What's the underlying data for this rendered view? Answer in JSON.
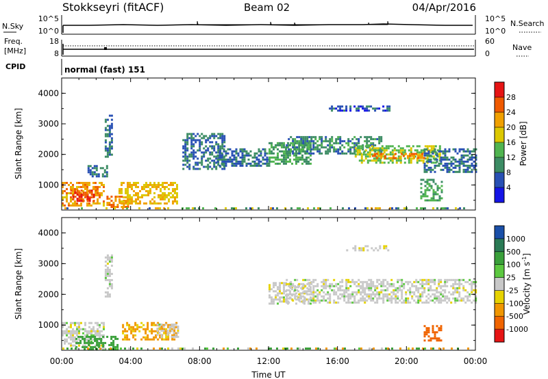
{
  "header": {
    "station": "Stokkseyri (fitACF)",
    "beam": "Beam 02",
    "date": "04/Apr/2016"
  },
  "noise_panel": {
    "left_label": "N.Sky",
    "right_label": "N.Search",
    "top_tick": "10^5",
    "bottom_tick": "10^0"
  },
  "freq_panel": {
    "label_line1": "Freq.",
    "label_line2": "[MHz]",
    "left_ticks": [
      "18",
      "8"
    ],
    "right_ticks": [
      "60",
      "0"
    ],
    "right_label": "Nave"
  },
  "cpid_panel": {
    "label": "CPID",
    "mode": "normal (fast) 151"
  },
  "x_axis": {
    "ticks": [
      "00:00",
      "04:00",
      "08:00",
      "12:00",
      "16:00",
      "20:00",
      "00:00"
    ],
    "label": "Time UT"
  },
  "colors": {
    "power_scale": [
      "#1414e6",
      "#2850b4",
      "#3c8c64",
      "#50b450",
      "#dcc800",
      "#f0a000",
      "#f05a00",
      "#e61414"
    ],
    "velocity_scale": [
      "#1a4fa8",
      "#2a7a55",
      "#3aa03a",
      "#5cc840",
      "#c8c8c8",
      "#e6d200",
      "#f09600",
      "#f06400",
      "#e61414"
    ]
  },
  "chart_data": [
    {
      "type": "heatmap",
      "title": "",
      "xlabel": "Time UT",
      "ylabel": "Slant Range [km]",
      "xlim": [
        0,
        24
      ],
      "ylim": [
        180,
        4500
      ],
      "yticks": [
        1000,
        2000,
        3000,
        4000
      ],
      "colorbar": {
        "label": "Power [dB]",
        "ticks": [
          "4",
          "8",
          "12",
          "16",
          "20",
          "24",
          "28"
        ],
        "range": [
          0,
          32
        ]
      },
      "regions": [
        {
          "t0": 0.0,
          "t1": 2.5,
          "r0": 300,
          "r1": 1100,
          "value": 22
        },
        {
          "t0": 0.5,
          "t1": 2.0,
          "r0": 450,
          "r1": 850,
          "value": 28
        },
        {
          "t0": 1.5,
          "t1": 2.6,
          "r0": 1300,
          "r1": 1650,
          "value": 8
        },
        {
          "t0": 2.5,
          "t1": 2.9,
          "r0": 1900,
          "r1": 3300,
          "value": 8
        },
        {
          "t0": 2.6,
          "t1": 3.8,
          "r0": 250,
          "r1": 650,
          "value": 24
        },
        {
          "t0": 3.3,
          "t1": 6.7,
          "r0": 400,
          "r1": 1100,
          "value": 20
        },
        {
          "t0": 7.0,
          "t1": 9.5,
          "r0": 1500,
          "r1": 2700,
          "value": 8
        },
        {
          "t0": 9.0,
          "t1": 12.0,
          "r0": 1600,
          "r1": 2200,
          "value": 8
        },
        {
          "t0": 12.0,
          "t1": 14.5,
          "r0": 1700,
          "r1": 2400,
          "value": 12
        },
        {
          "t0": 13.0,
          "t1": 18.5,
          "r0": 2000,
          "r1": 2600,
          "value": 10
        },
        {
          "t0": 15.5,
          "t1": 19.0,
          "r0": 3400,
          "r1": 3600,
          "value": 6
        },
        {
          "t0": 17.0,
          "t1": 22.0,
          "r0": 1700,
          "r1": 2300,
          "value": 16
        },
        {
          "t0": 18.0,
          "t1": 21.0,
          "r0": 1850,
          "r1": 2050,
          "value": 24
        },
        {
          "t0": 21.0,
          "t1": 24.0,
          "r0": 1400,
          "r1": 2200,
          "value": 8
        },
        {
          "t0": 20.8,
          "t1": 22.0,
          "r0": 500,
          "r1": 1200,
          "value": 12
        }
      ]
    },
    {
      "type": "heatmap",
      "title": "",
      "xlabel": "Time UT",
      "ylabel": "Slant Range [km]",
      "xlim": [
        0,
        24
      ],
      "ylim": [
        180,
        4500
      ],
      "yticks": [
        1000,
        2000,
        3000,
        4000
      ],
      "colorbar": {
        "label": "Velocity [m s^-1]",
        "ticks": [
          "1000",
          "500",
          "100",
          "25",
          "-25",
          "-100",
          "-500",
          "-1000"
        ],
        "range": [
          -1200,
          1200
        ]
      },
      "regions": [
        {
          "t0": 0.0,
          "t1": 2.5,
          "r0": 300,
          "r1": 1100,
          "value": 0
        },
        {
          "t0": 0.8,
          "t1": 3.2,
          "r0": 200,
          "r1": 650,
          "value": 120
        },
        {
          "t0": 2.5,
          "t1": 2.9,
          "r0": 1900,
          "r1": 3300,
          "value": 0
        },
        {
          "t0": 3.5,
          "t1": 6.7,
          "r0": 500,
          "r1": 1100,
          "value": -80
        },
        {
          "t0": 5.5,
          "t1": 6.7,
          "r0": 600,
          "r1": 1050,
          "value": 0
        },
        {
          "t0": 12.0,
          "t1": 14.5,
          "r0": 1700,
          "r1": 2400,
          "value": 0
        },
        {
          "t0": 13.0,
          "t1": 24.0,
          "r0": 1700,
          "r1": 2500,
          "value": 0
        },
        {
          "t0": 16.5,
          "t1": 19.0,
          "r0": 3400,
          "r1": 3600,
          "value": 0
        },
        {
          "t0": 21.0,
          "t1": 22.0,
          "r0": 500,
          "r1": 1000,
          "value": -600
        }
      ]
    }
  ]
}
